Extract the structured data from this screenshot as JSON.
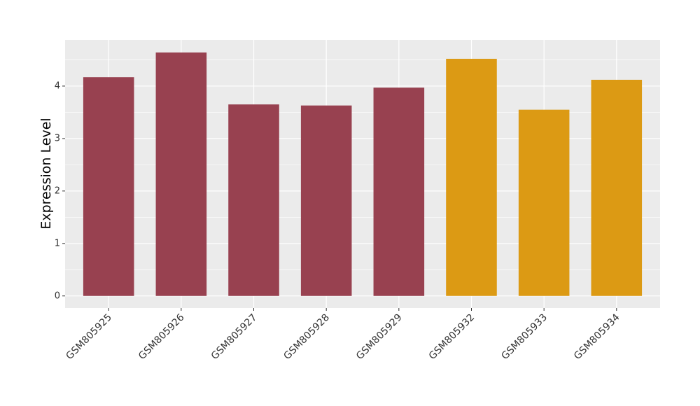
{
  "chart_data": {
    "type": "bar",
    "y_label": "Expression Level",
    "categories": [
      "GSM805925",
      "GSM805926",
      "GSM805927",
      "GSM805928",
      "GSM805929",
      "GSM805932",
      "GSM805933",
      "GSM805934"
    ],
    "values": [
      4.17,
      4.64,
      3.65,
      3.63,
      3.97,
      4.52,
      3.55,
      4.12
    ],
    "colors": [
      "#984150",
      "#984150",
      "#984150",
      "#984150",
      "#984150",
      "#DC9A14",
      "#DC9A14",
      "#DC9A14"
    ],
    "ylim": [
      -0.23,
      4.88
    ],
    "yticks": [
      0,
      1,
      2,
      3,
      4
    ],
    "grid": true
  }
}
